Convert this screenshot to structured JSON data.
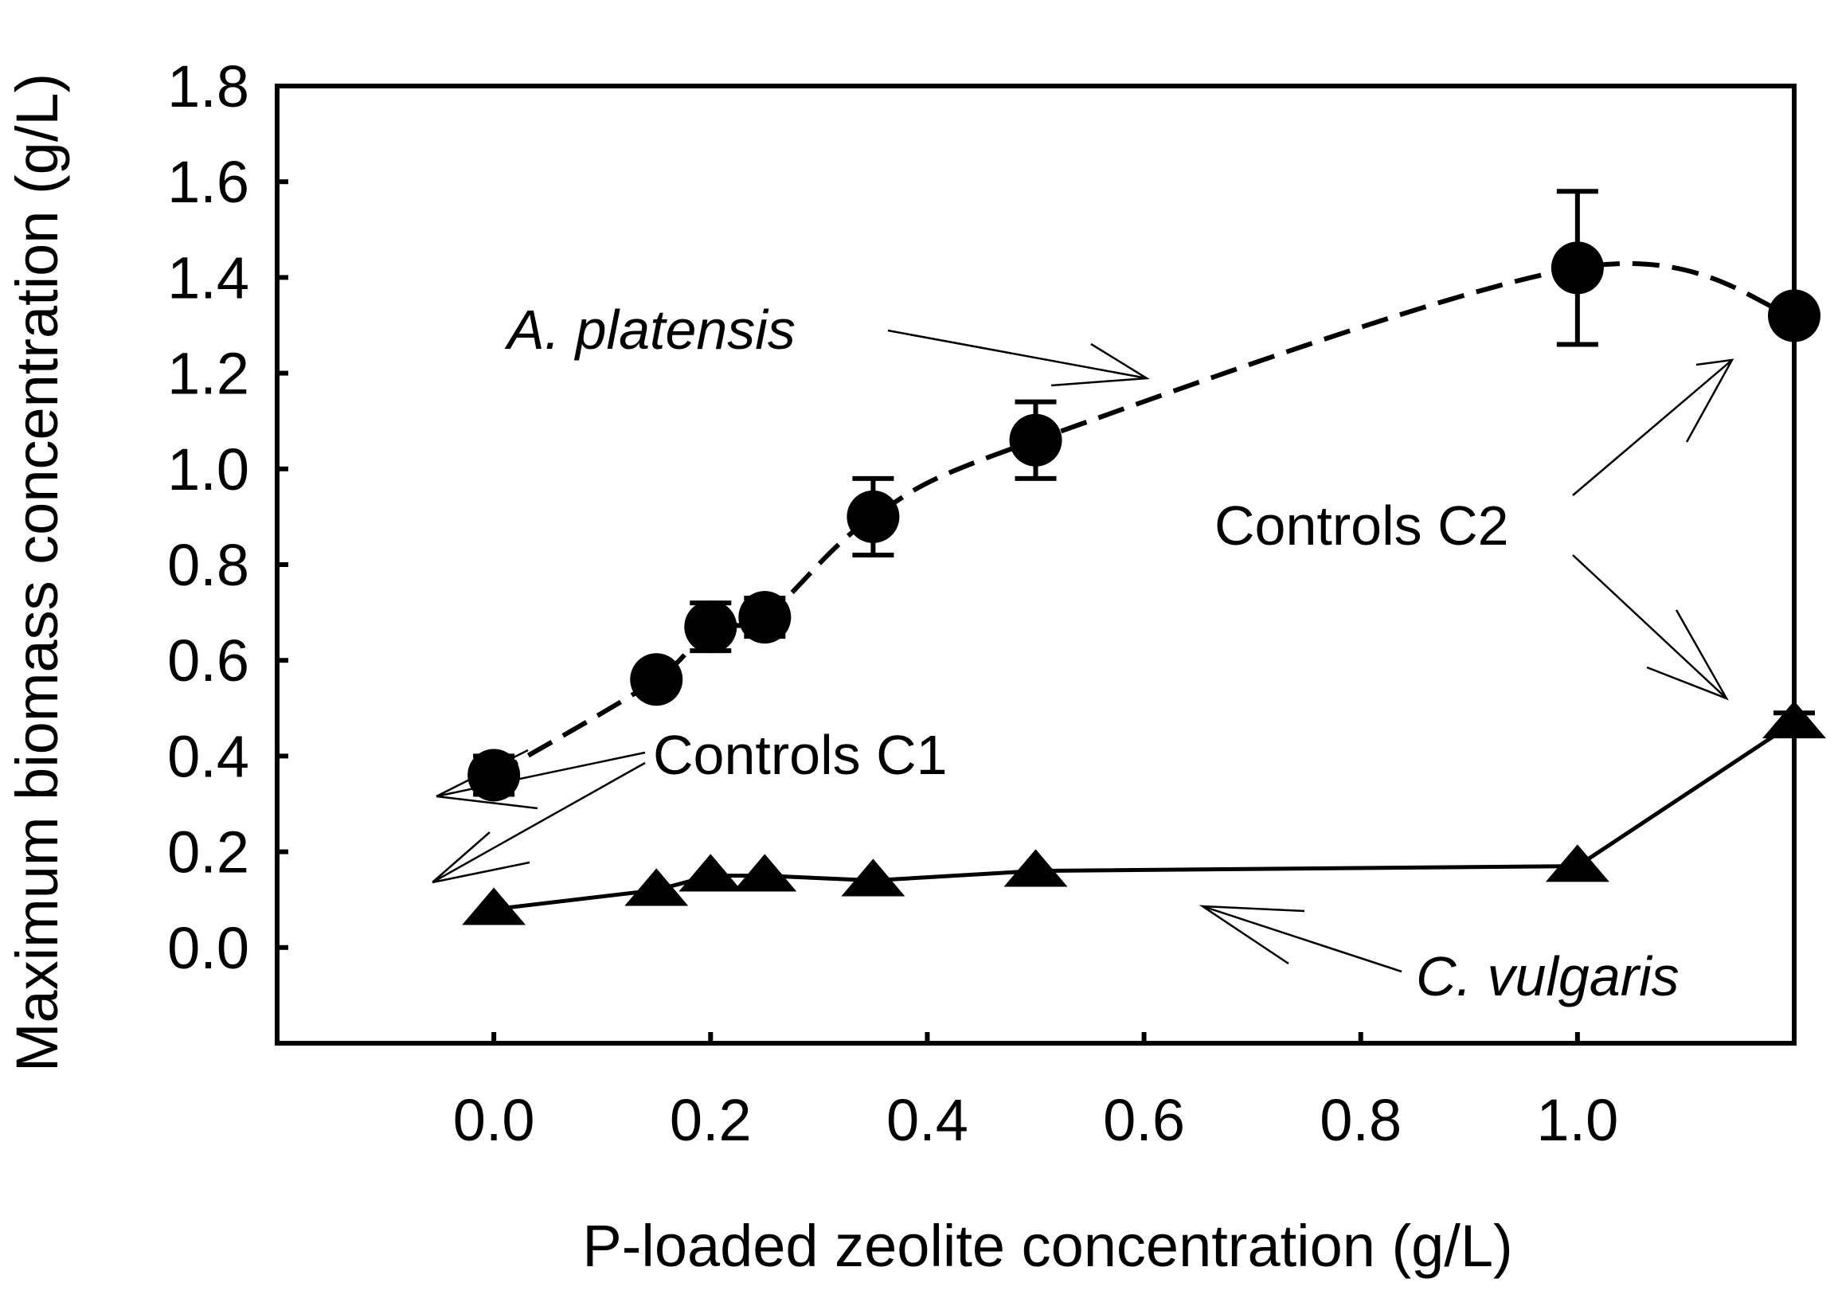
{
  "chart_data": {
    "type": "line",
    "title": "",
    "xlabel": "P-loaded zeolite concentration (g/L)",
    "ylabel": "Maximum biomass concentration (g/L)",
    "xlim": [
      -0.2,
      1.2
    ],
    "ylim": [
      -0.2,
      1.8
    ],
    "x_ticks": [
      "0.0",
      "0.2",
      "0.4",
      "0.6",
      "0.8",
      "1.0"
    ],
    "x_tick_values": [
      0.0,
      0.2,
      0.4,
      0.6,
      0.8,
      1.0
    ],
    "y_ticks": [
      "0.0",
      "0.2",
      "0.4",
      "0.6",
      "0.8",
      "1.0",
      "1.2",
      "1.4",
      "1.6",
      "1.8"
    ],
    "y_tick_values": [
      0.0,
      0.2,
      0.4,
      0.6,
      0.8,
      1.0,
      1.2,
      1.4,
      1.6,
      1.8
    ],
    "grid": false,
    "series": [
      {
        "name": "A. platensis",
        "marker": "circle",
        "line_style": "dashed",
        "x": [
          0.0,
          0.15,
          0.2,
          0.25,
          0.35,
          0.5,
          1.0,
          1.2
        ],
        "values": [
          0.36,
          0.56,
          0.67,
          0.69,
          0.9,
          1.06,
          1.42,
          1.32
        ],
        "error": [
          0.04,
          0.0,
          0.05,
          0.04,
          0.08,
          0.08,
          0.16,
          0.0
        ]
      },
      {
        "name": "C. vulgaris",
        "marker": "triangle",
        "line_style": "solid",
        "x": [
          0.0,
          0.15,
          0.2,
          0.25,
          0.35,
          0.5,
          1.0,
          1.2
        ],
        "values": [
          0.08,
          0.12,
          0.15,
          0.15,
          0.14,
          0.16,
          0.17,
          0.47
        ],
        "error": [
          0.0,
          0.0,
          0.0,
          0.0,
          0.0,
          0.0,
          0.0,
          0.02
        ]
      }
    ],
    "annotations": [
      {
        "text": "A. platensis",
        "italic": true,
        "points_to": "A. platensis curve"
      },
      {
        "text": "C. vulgaris",
        "italic": true,
        "points_to": "C. vulgaris curve"
      },
      {
        "text": "Controls C1",
        "italic": false,
        "points_to": "points at x = 0.0"
      },
      {
        "text": "Controls C2",
        "italic": false,
        "points_to": "rightmost points"
      }
    ]
  }
}
